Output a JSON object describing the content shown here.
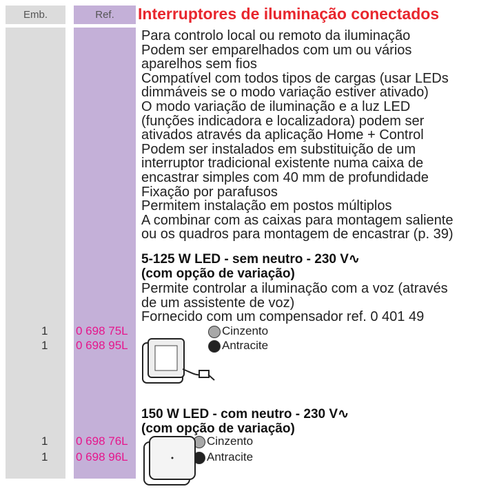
{
  "header": {
    "emb": "Emb.",
    "ref": "Ref.",
    "title": "Interruptores de iluminação conectados"
  },
  "intro": [
    "Para controlo local ou remoto da iluminação",
    "Podem ser emparelhados com um ou vários",
    "aparelhos sem fios",
    "Compatível com todos tipos de cargas (usar LEDs",
    "dimmáveis se o modo variação estiver ativado)",
    "O modo variação de iluminação e a luz LED",
    "(funções indicadora e localizadora) podem ser",
    "ativados através da aplicação Home + Control",
    "Podem ser instalados em substituição de um",
    "interruptor tradicional existente numa caixa de",
    "encastrar simples com 40 mm de profundidade",
    "Fixação por parafusos",
    "Permitem instalação em postos múltiplos",
    "A combinar com as caixas para montagem saliente",
    "ou os quadros para montagem de encastrar (p. 39)"
  ],
  "products": [
    {
      "heading": [
        "5-125 W LED - sem neutro - 230 V∿",
        "(com opção de variação)"
      ],
      "description": [
        "Permite controlar a iluminação com a voz (através",
        "de um assistente de voz)",
        "Fornecido com um compensador ref. 0 401 49"
      ],
      "items": [
        {
          "emb": "1",
          "ref": "0 698 75L",
          "color": "Cinzento"
        },
        {
          "emb": "1",
          "ref": "0 698 95L",
          "color": "Antracite"
        }
      ]
    },
    {
      "heading": [
        "150 W LED - com neutro - 230 V∿",
        "(com opção de variação)"
      ],
      "description": [],
      "items": [
        {
          "emb": "1",
          "ref": "0 698 76L",
          "color": "Cinzento"
        },
        {
          "emb": "1",
          "ref": "0 698 96L",
          "color": "Antracite"
        }
      ]
    }
  ]
}
